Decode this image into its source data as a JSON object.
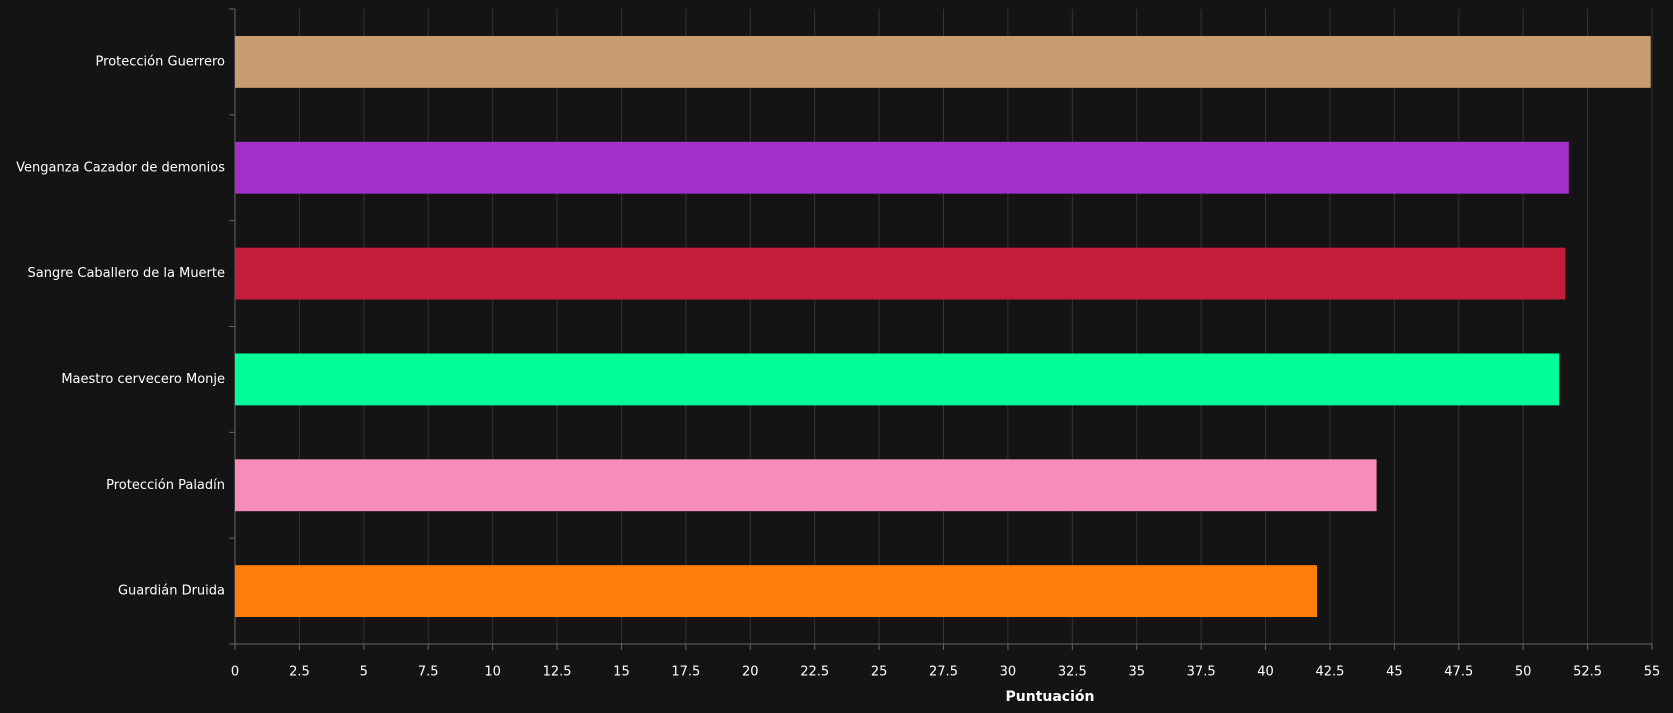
{
  "chart_data": {
    "type": "bar",
    "orientation": "horizontal",
    "x_label": "Puntuación",
    "categories": [
      "Protección Guerrero",
      "Venganza Cazador de demonios",
      "Sangre Caballero de la Muerte",
      "Maestro cervecero Monje",
      "Protección Paladín",
      "Guardián Druida"
    ],
    "values": [
      54.95,
      51.77,
      51.64,
      51.4,
      44.31,
      42.0
    ],
    "colors": [
      "#c79c6e",
      "#a330c9",
      "#c41e3a",
      "#00ff98",
      "#f58cba",
      "#ff7d0a"
    ],
    "xlim": [
      0,
      55
    ],
    "xticks": [
      0,
      2.5,
      5,
      7.5,
      10,
      12.5,
      15,
      17.5,
      20,
      22.5,
      25,
      27.5,
      30,
      32.5,
      35,
      37.5,
      40,
      42.5,
      45,
      47.5,
      50,
      52.5,
      55
    ],
    "grid": true
  }
}
